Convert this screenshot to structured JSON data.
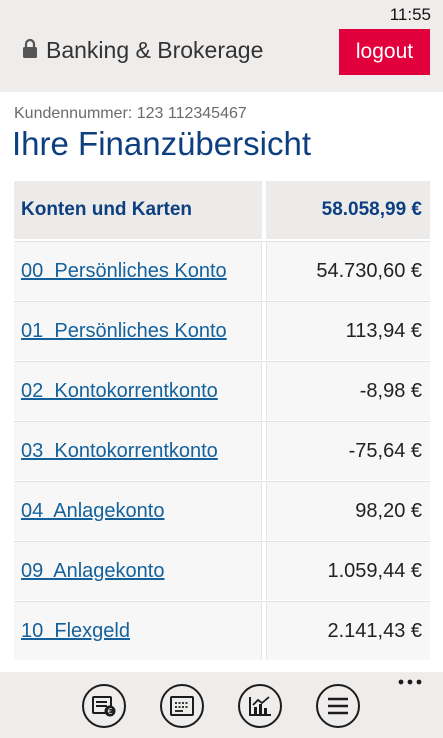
{
  "status_bar": {
    "time": "11:55"
  },
  "header": {
    "title": "Banking & Brokerage",
    "logout_label": "logout",
    "accent_color": "#e2003c"
  },
  "customer": {
    "label": "Kundennummer: 123 112345467"
  },
  "page_title": "Ihre Finanzübersicht",
  "summary": {
    "label": "Konten und Karten",
    "total": "58.058,99 €"
  },
  "accounts": [
    {
      "name": "00  Persönliches Konto",
      "amount": "54.730,60 €"
    },
    {
      "name": "01  Persönliches Konto",
      "amount": "113,94 €"
    },
    {
      "name": "02  Kontokorrentkonto",
      "amount": "-8,98 €"
    },
    {
      "name": "03  Kontokorrentkonto",
      "amount": "-75,64 €"
    },
    {
      "name": "04  Anlagekonto",
      "amount": "98,20 €"
    },
    {
      "name": "09  Anlagekonto",
      "amount": "1.059,44 €"
    },
    {
      "name": "10  Flexgeld",
      "amount": "2.141,43 €"
    }
  ],
  "app_bar": {
    "buttons": [
      "card-icon",
      "statement-icon",
      "chart-icon",
      "menu-icon"
    ],
    "more": "..."
  }
}
